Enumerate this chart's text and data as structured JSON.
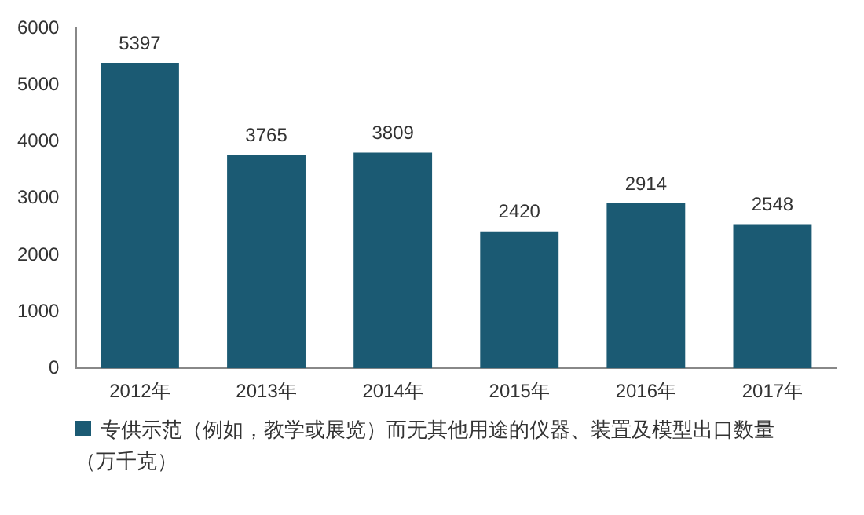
{
  "chart_data": {
    "type": "bar",
    "categories": [
      "2012年",
      "2013年",
      "2014年",
      "2015年",
      "2016年",
      "2017年"
    ],
    "series": [
      {
        "name": "专供示范（例如，教学或展览）而无其他用途的仪器、装置及模型出口数量（万千克）",
        "color": "#1b5a73",
        "values": [
          5397,
          3765,
          3809,
          2420,
          2914,
          2548
        ]
      }
    ],
    "ylim": [
      0,
      6000
    ],
    "yticks": [
      0,
      1000,
      2000,
      3000,
      4000,
      5000,
      6000
    ],
    "grid": false,
    "legend": "bottom",
    "data_labels": true
  }
}
